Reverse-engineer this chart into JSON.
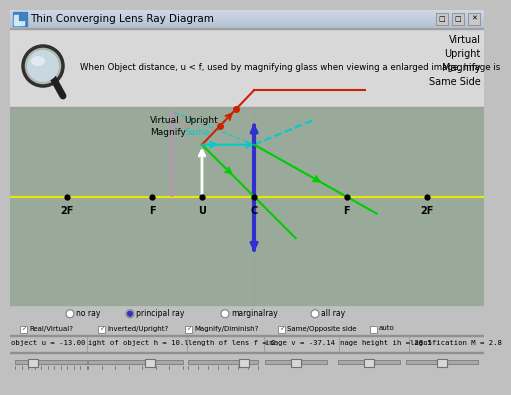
{
  "title": "Thin Converging Lens Ray Diagram",
  "bg_color": "#c0c0c0",
  "top_panel_bg": "#e0e0e0",
  "diagram_bg": "#9aaa9a",
  "info_text": "When Object distance, u < f, used by magnifying glass when viewing a enlarged image. Image is",
  "info_right": [
    "Virtual",
    "Upright",
    "Magnify",
    "Same Side"
  ],
  "axis_labels": [
    "2F",
    "F",
    "U",
    "C",
    "F",
    "2F"
  ],
  "bottom_text1": "object u = -13.00",
  "bottom_text2": "ight of object h = 10.l",
  "bottom_text3": "length of lens f = 2",
  "bottom_text4": "image v = -37.14",
  "bottom_text5": "nage height ih = 28.5",
  "bottom_text6": "lagnification M = 2.8",
  "radio_labels": [
    "no ray",
    "principal ray",
    "marginalray",
    "all ray"
  ],
  "check_labels": [
    "Real/Virtual?",
    "Inverted/Upright?",
    "Magnify/Diminish?",
    "Same/Opposite side",
    "auto"
  ],
  "yellow_line_color": "#e8e800",
  "lens_color": "#3030d0",
  "green_ray_color": "#00cc00",
  "red_ray_color": "#cc2200",
  "cyan_ray_color": "#00cccc",
  "white_arrow_color": "#ffffff",
  "title_bar_color": "#b8c8d8",
  "title_bar_gradient_top": "#d0dce8",
  "title_bar_gradient_bot": "#9ab0c0"
}
